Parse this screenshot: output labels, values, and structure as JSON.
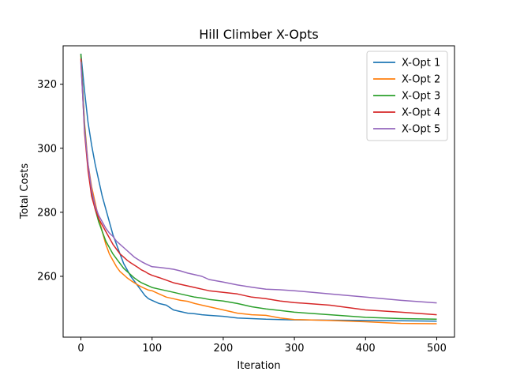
{
  "chart_data": {
    "type": "line",
    "title": "Hill Climber X-Opts",
    "xlabel": "Iteration",
    "ylabel": "Total Costs",
    "xlim": [
      -25,
      525
    ],
    "ylim": [
      241,
      332
    ],
    "xticks": [
      0,
      100,
      200,
      300,
      400,
      500
    ],
    "yticks": [
      260,
      280,
      300,
      320
    ],
    "grid": false,
    "legend_position": "top-right",
    "series": [
      {
        "name": "X-Opt 1",
        "color": "#1f77b4",
        "x": [
          0,
          5,
          10,
          15,
          20,
          25,
          30,
          35,
          40,
          45,
          50,
          55,
          60,
          65,
          70,
          75,
          80,
          85,
          90,
          95,
          100,
          110,
          120,
          130,
          140,
          150,
          160,
          170,
          180,
          200,
          220,
          240,
          260,
          280,
          300,
          350,
          400,
          450,
          500
        ],
        "y": [
          329.5,
          318,
          308,
          301,
          295,
          290,
          285,
          281,
          277,
          273,
          270,
          267,
          264,
          262,
          260,
          258.5,
          257,
          255.5,
          254,
          253,
          252.5,
          251.5,
          251,
          249.5,
          249,
          248.5,
          248.3,
          248,
          247.8,
          247.5,
          247,
          246.8,
          246.6,
          246.5,
          246.4,
          246.3,
          246.2,
          246.1,
          246
        ]
      },
      {
        "name": "X-Opt 2",
        "color": "#ff7f0e",
        "x": [
          0,
          5,
          10,
          15,
          20,
          25,
          30,
          35,
          40,
          45,
          50,
          55,
          60,
          65,
          70,
          75,
          80,
          85,
          90,
          95,
          100,
          110,
          120,
          130,
          140,
          150,
          160,
          170,
          180,
          200,
          220,
          240,
          260,
          280,
          300,
          350,
          400,
          450,
          500
        ],
        "y": [
          329,
          308,
          295,
          288,
          283,
          278,
          274,
          270,
          267,
          265,
          263,
          261.5,
          260.5,
          259.5,
          258.7,
          258,
          257.3,
          256.7,
          256.2,
          255.7,
          255.5,
          254.5,
          253.5,
          253,
          252.5,
          252.2,
          251.5,
          251,
          250.5,
          249.5,
          248.5,
          248,
          247.8,
          247,
          246.5,
          246.2,
          245.8,
          245.3,
          245.2
        ]
      },
      {
        "name": "X-Opt 3",
        "color": "#2ca02c",
        "x": [
          0,
          5,
          10,
          15,
          20,
          25,
          30,
          35,
          40,
          45,
          50,
          55,
          60,
          65,
          70,
          75,
          80,
          85,
          90,
          95,
          100,
          110,
          120,
          130,
          140,
          150,
          160,
          170,
          180,
          200,
          220,
          240,
          260,
          280,
          300,
          350,
          400,
          450,
          500
        ],
        "y": [
          329.5,
          307,
          294,
          286,
          281,
          277,
          274,
          271,
          269,
          267,
          265.5,
          264,
          262.5,
          261.5,
          260.5,
          259.5,
          258.7,
          258,
          257.5,
          257,
          256.5,
          256,
          255.5,
          255,
          254.5,
          254,
          253.5,
          253.2,
          252.8,
          252.3,
          251.5,
          250.5,
          249.8,
          249.3,
          248.8,
          248,
          247.2,
          246.8,
          246.6
        ]
      },
      {
        "name": "X-Opt 4",
        "color": "#d62728",
        "x": [
          0,
          5,
          10,
          15,
          20,
          25,
          30,
          35,
          40,
          45,
          50,
          55,
          60,
          65,
          70,
          75,
          80,
          85,
          90,
          95,
          100,
          110,
          120,
          130,
          140,
          150,
          160,
          170,
          180,
          200,
          220,
          240,
          260,
          280,
          300,
          350,
          400,
          450,
          500
        ],
        "y": [
          328,
          305,
          293,
          285,
          281,
          278,
          276,
          274,
          272,
          270,
          268.5,
          267,
          266,
          265,
          264.2,
          263.5,
          262.8,
          262,
          261.5,
          260.8,
          260.3,
          259.6,
          258.8,
          258,
          257.5,
          257,
          256.5,
          256,
          255.5,
          255,
          254.5,
          253.5,
          253,
          252.3,
          251.8,
          251,
          249.5,
          248.8,
          248
        ]
      },
      {
        "name": "X-Opt 5",
        "color": "#9467bd",
        "x": [
          0,
          5,
          10,
          15,
          20,
          25,
          30,
          35,
          40,
          45,
          50,
          55,
          60,
          65,
          70,
          75,
          80,
          85,
          90,
          95,
          100,
          110,
          120,
          130,
          140,
          150,
          160,
          170,
          180,
          200,
          220,
          240,
          260,
          280,
          300,
          350,
          400,
          450,
          500
        ],
        "y": [
          327,
          306,
          295,
          287,
          282,
          279,
          277,
          275,
          273.5,
          272.5,
          271,
          270,
          269,
          268,
          267,
          266,
          265.3,
          264.6,
          264,
          263.5,
          263,
          262.8,
          262.5,
          262.2,
          261.7,
          261,
          260.5,
          260,
          259,
          258.2,
          257.3,
          256.6,
          256,
          255.8,
          255.5,
          254.5,
          253.5,
          252.5,
          251.7
        ]
      }
    ]
  }
}
